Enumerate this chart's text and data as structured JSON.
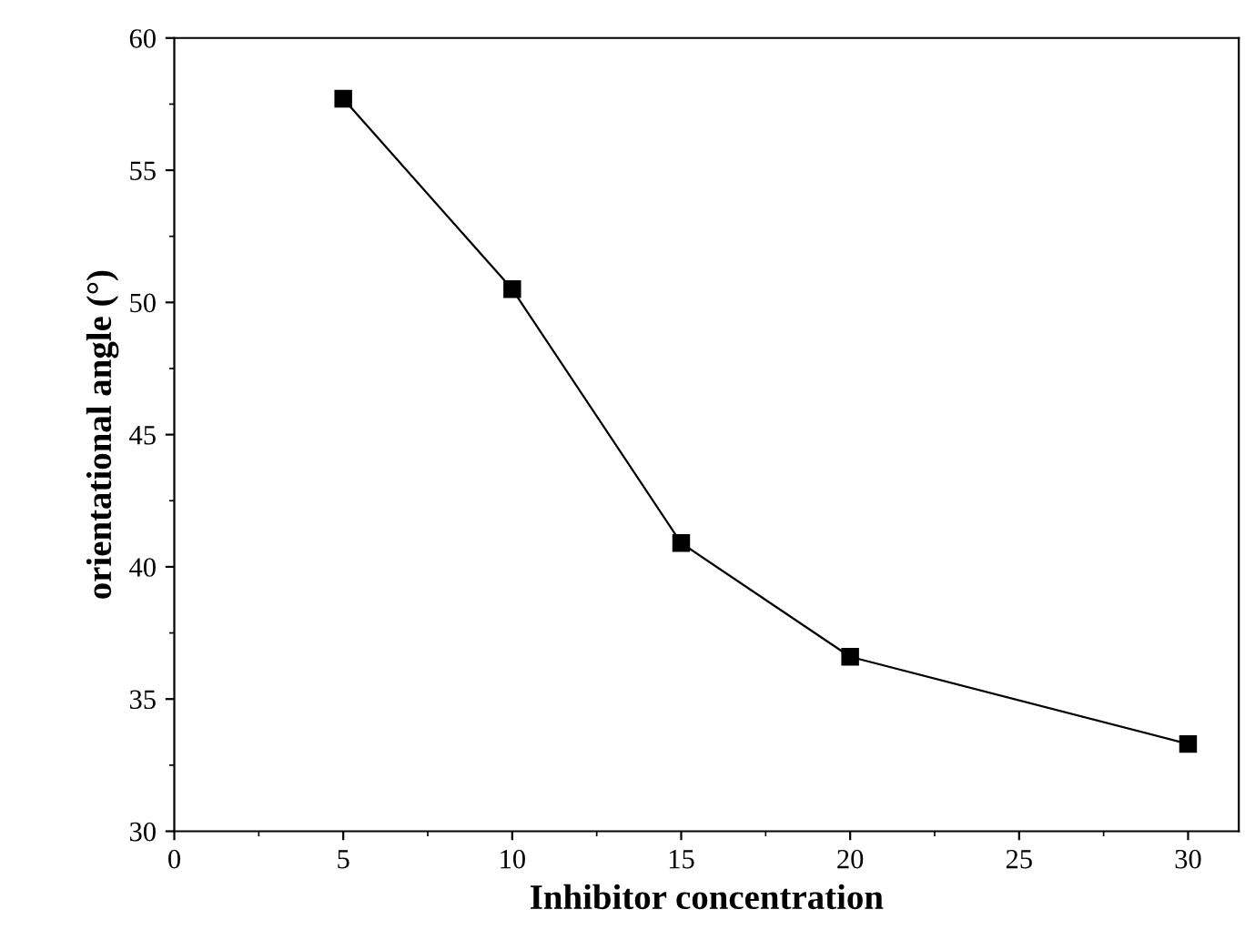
{
  "chart_data": {
    "type": "line",
    "xlabel": "Inhibitor concentration",
    "ylabel": "orientational angle (°)",
    "x": [
      5,
      10,
      15,
      20,
      30
    ],
    "series": [
      {
        "color": "#000000",
        "values": [
          57.7,
          50.5,
          40.9,
          36.6,
          33.3
        ]
      }
    ],
    "xlim": [
      0,
      31.5
    ],
    "xticks": [
      0,
      5,
      10,
      15,
      20,
      25,
      30
    ],
    "ylim": [
      30,
      60
    ],
    "yticks": [
      30,
      35,
      40,
      45,
      50,
      55,
      60
    ],
    "marker": "square",
    "line_style": "solid",
    "grid": false,
    "legend": false
  }
}
